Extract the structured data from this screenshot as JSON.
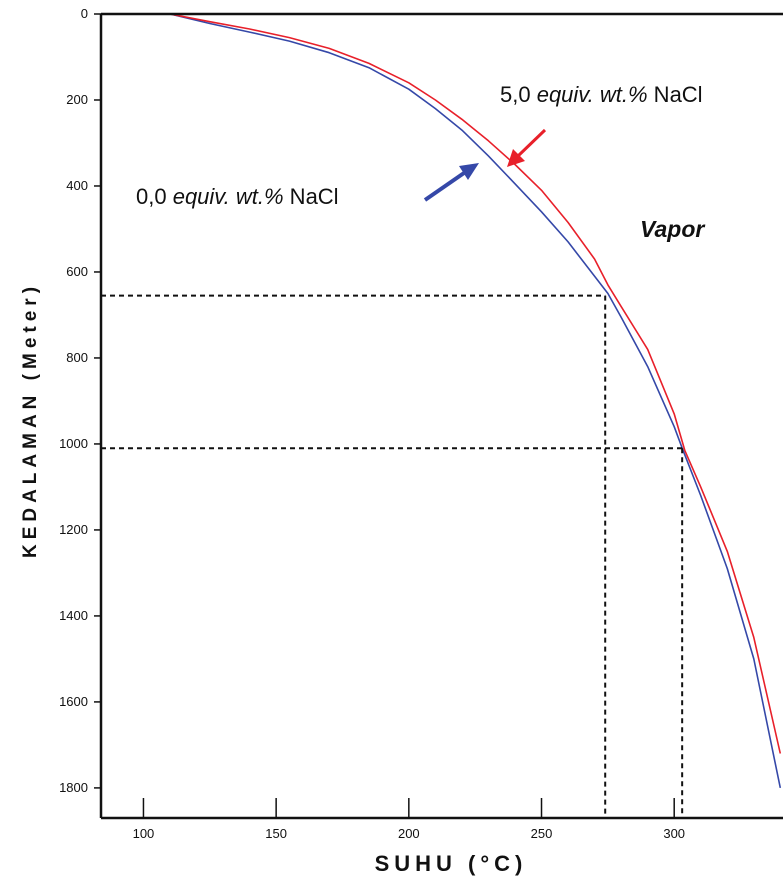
{
  "chart_data": {
    "type": "line",
    "xlabel": "SUHU (°C)",
    "ylabel": "KEDALAMAN (Meter)",
    "xlim": [
      84,
      341
    ],
    "ylim": [
      0,
      1870
    ],
    "x_ticks": [
      100,
      150,
      200,
      250,
      300
    ],
    "y_ticks": [
      0,
      200,
      400,
      600,
      800,
      1000,
      1200,
      1400,
      1600,
      1800
    ],
    "y_axis_inverted": true,
    "series": [
      {
        "name": "0,0 equiv. wt.% NaCl",
        "color": "#3548a8",
        "points": [
          [
            110,
            0
          ],
          [
            125,
            22
          ],
          [
            140,
            42
          ],
          [
            155,
            63
          ],
          [
            170,
            90
          ],
          [
            185,
            125
          ],
          [
            200,
            175
          ],
          [
            210,
            220
          ],
          [
            220,
            270
          ],
          [
            230,
            330
          ],
          [
            240,
            395
          ],
          [
            250,
            460
          ],
          [
            260,
            530
          ],
          [
            270,
            610
          ],
          [
            275,
            650
          ],
          [
            280,
            705
          ],
          [
            290,
            820
          ],
          [
            300,
            960
          ],
          [
            303,
            1010
          ],
          [
            310,
            1120
          ],
          [
            320,
            1290
          ],
          [
            330,
            1500
          ],
          [
            340,
            1800
          ]
        ]
      },
      {
        "name": "5,0 equiv. wt.% NaCl",
        "color": "#e8202a",
        "points": [
          [
            110,
            0
          ],
          [
            125,
            18
          ],
          [
            140,
            35
          ],
          [
            155,
            55
          ],
          [
            170,
            80
          ],
          [
            185,
            115
          ],
          [
            200,
            160
          ],
          [
            210,
            200
          ],
          [
            220,
            245
          ],
          [
            230,
            295
          ],
          [
            240,
            350
          ],
          [
            250,
            410
          ],
          [
            260,
            485
          ],
          [
            270,
            570
          ],
          [
            275,
            630
          ],
          [
            280,
            680
          ],
          [
            290,
            780
          ],
          [
            300,
            930
          ],
          [
            304,
            1015
          ],
          [
            310,
            1100
          ],
          [
            320,
            1250
          ],
          [
            330,
            1450
          ],
          [
            340,
            1720
          ]
        ]
      }
    ],
    "reference_lines": [
      {
        "x": 274,
        "y": 655
      },
      {
        "x": 303,
        "y": 1010
      }
    ],
    "annotations": [
      {
        "prefix": "5,0 ",
        "italic": "equiv. wt.%",
        "suffix": " NaCl",
        "color": "#e8202a"
      },
      {
        "prefix": "0,0 ",
        "italic": "equiv. wt.%",
        "suffix": " NaCl",
        "color": "#3548a8"
      }
    ],
    "region_label": "Vapor"
  }
}
